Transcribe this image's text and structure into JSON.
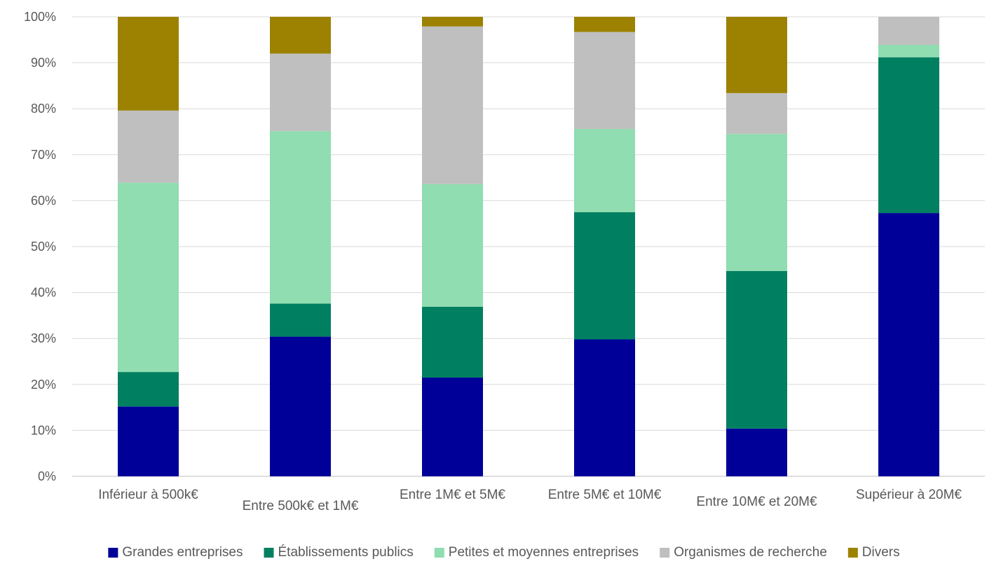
{
  "chart_data": {
    "type": "bar",
    "stacked": true,
    "percent_stacked": true,
    "categories": [
      "Inférieur à 500k€",
      "Entre 500k€ et 1M€",
      "Entre 1M€ et 5M€",
      "Entre 5M€ et 10M€",
      "Entre 10M€ et 20M€",
      "Supérieur à 20M€"
    ],
    "series": [
      {
        "name": "Grandes entreprises",
        "color": "#000099",
        "values": [
          15.2,
          30.4,
          21.5,
          29.8,
          10.4,
          57.3
        ]
      },
      {
        "name": "Établissements publics",
        "color": "#008060",
        "values": [
          7.5,
          7.2,
          15.4,
          27.7,
          34.3,
          33.9
        ]
      },
      {
        "name": "Petites et moyennes entreprises",
        "color": "#8FDDB0",
        "values": [
          41.2,
          37.5,
          26.7,
          18.1,
          29.8,
          2.7
        ]
      },
      {
        "name": "Organismes de recherche",
        "color": "#BFBFBF",
        "values": [
          15.7,
          16.9,
          34.3,
          21.1,
          8.9,
          6.1
        ]
      },
      {
        "name": "Divers",
        "color": "#9C8200",
        "values": [
          20.4,
          8.0,
          2.1,
          3.3,
          16.6,
          0.0
        ]
      }
    ],
    "ylim": [
      0,
      100
    ],
    "yticks": [
      "0%",
      "10%",
      "20%",
      "30%",
      "40%",
      "50%",
      "60%",
      "70%",
      "80%",
      "90%",
      "100%"
    ],
    "grid": true,
    "legend_position": "bottom",
    "title": "",
    "xlabel": "",
    "ylabel": ""
  }
}
